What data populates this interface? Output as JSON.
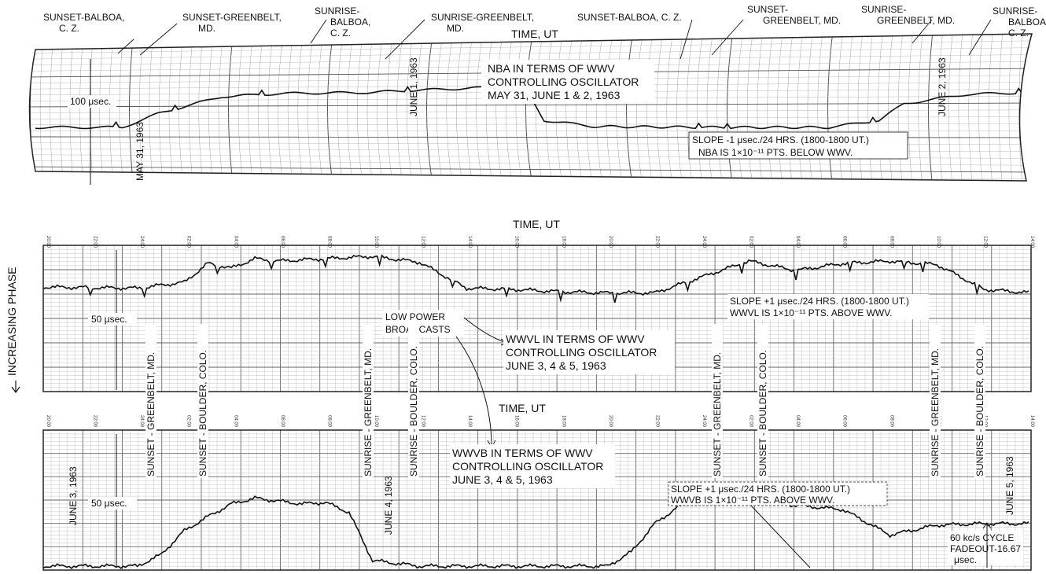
{
  "chart_data": [
    {
      "type": "line",
      "title": "NBA IN TERMS OF WWV CONTROLLING OSCILLATOR MAY 31, JUNE 1 & 2, 1963",
      "title_lines": [
        "NBA IN TERMS OF WWV",
        "CONTROLLING OSCILLATOR",
        "MAY 31, JUNE 1 & 2, 1963"
      ],
      "xlabel": "TIME, UT",
      "scale_label": "100 μsec.",
      "date_labels": [
        "MAY 31, 1963",
        "JUNE 1, 1963",
        "JUNE 2, 1963"
      ],
      "note_lines": [
        "SLOPE -1 μsec./24 HRS. (1800-1800 UT.)",
        "NBA IS 1×10⁻¹¹ PTS. BELOW WWV."
      ],
      "event_labels": [
        {
          "text": [
            "SUNSET-BALBOA,",
            "C. Z."
          ]
        },
        {
          "text": [
            "SUNSET-GREENBELT,",
            "MD."
          ]
        },
        {
          "text": [
            "SUNRISE-",
            "BALBOA,",
            "C. Z."
          ]
        },
        {
          "text": [
            "SUNRISE-GREENBELT,",
            "MD."
          ]
        },
        {
          "text": [
            "SUNSET-BALBOA, C. Z."
          ]
        },
        {
          "text": [
            "SUNSET-",
            "GREENBELT, MD."
          ]
        },
        {
          "text": [
            "SUNRISE-",
            "GREENBELT, MD."
          ]
        },
        {
          "text": [
            "SUNRISE-",
            "BALBOA,",
            "C. Z."
          ]
        }
      ],
      "series": [
        {
          "x": [
            0,
            14,
            20,
            30,
            40,
            54,
            60,
            68,
            74,
            78,
            80,
            82,
            90,
            110,
            128,
            136,
            140,
            150,
            160
          ],
          "y": [
            0,
            0,
            30,
            65,
            72,
            74,
            78,
            82,
            85,
            80,
            60,
            15,
            2,
            0,
            0,
            15,
            50,
            70,
            74
          ]
        }
      ]
    },
    {
      "type": "line",
      "title": "WWVL IN TERMS OF WWV CONTROLLING OSCILLATOR JUNE 3, 4 & 5, 1963",
      "title_lines": [
        "WWVL IN TERMS OF WWV",
        "CONTROLLING OSCILLATOR",
        "JUNE 3, 4 & 5, 1963"
      ],
      "xlabel": "TIME, UT",
      "x_ticks": [
        "20:00",
        "22:00",
        "24:00",
        "02:00",
        "04:00",
        "06:00",
        "08:00",
        "10:00",
        "12:00",
        "14:00",
        "16:00",
        "18:00",
        "20:00",
        "22:00",
        "24:00",
        "02:00",
        "04:00",
        "06:00",
        "08:00",
        "10:00",
        "12:00",
        "14:00"
      ],
      "ylabel": "INCREASING PHASE",
      "scale_label": "50 μsec.",
      "annotation_lines": [
        "LOW POWER",
        "BROADCASTS"
      ],
      "note_lines": [
        "SLOPE +1 μsec./24 HRS. (1800-1800 UT.)",
        "WWVL IS 1×10⁻¹¹ PTS. ABOVE WWV."
      ],
      "series": [
        {
          "x": [
            0,
            4,
            6,
            7,
            8,
            9,
            10,
            12,
            14,
            16,
            18,
            20,
            22,
            24,
            26,
            30,
            32,
            34,
            36,
            38,
            40,
            42
          ],
          "y": [
            10,
            9,
            14,
            30,
            26,
            34,
            32,
            34,
            36,
            31,
            9,
            8,
            6,
            5,
            5,
            32,
            24,
            30,
            32,
            29,
            8,
            5
          ]
        }
      ]
    },
    {
      "type": "line",
      "title": "WWVB IN TERMS OF WWV CONTROLLING OSCILLATOR JUNE 3, 4 & 5, 1963",
      "title_lines": [
        "WWVB IN TERMS OF WWV",
        "CONTROLLING OSCILLATOR",
        "JUNE 3, 4 & 5, 1963"
      ],
      "xlabel": "TIME, UT",
      "x_ticks": [
        "20:00",
        "22:00",
        "24:00",
        "02:00",
        "04:00",
        "06:00",
        "08:00",
        "10:00",
        "12:00",
        "14:00",
        "16:00",
        "18:00",
        "20:00",
        "22:00",
        "24:00",
        "02:00",
        "04:00",
        "06:00",
        "08:00",
        "10:00",
        "12:00",
        "14:00"
      ],
      "scale_label": "50 μsec.",
      "date_labels": [
        "JUNE 3, 1963",
        "JUNE 4, 1963",
        "JUNE 5, 1963"
      ],
      "event_labels": [
        "SUNSET - GREENBELT, MD.",
        "SUNSET - BOULDER, COLO.",
        "SUNRISE - GREENBELT, MD.",
        "SUNRISE - BOULDER, COLO.",
        "SUNSET - GREENBELT, MD.",
        "SUNSET - BOULDER, COLO.",
        "SUNRISE - GREENBELT, MD.",
        "SUNRISE - BOULDER, COLO."
      ],
      "note_lines": [
        "SLOPE +1 μsec./24 HRS. (1800-1800 UT.)",
        "WWVB IS 1×10⁻¹¹ PTS. ABOVE WWV."
      ],
      "aside_lines": [
        "60 kc/s CYCLE",
        "FADEOUT-16.67",
        "μsec."
      ],
      "series": [
        {
          "x": [
            0,
            4,
            5,
            6,
            7,
            8,
            9,
            10,
            11,
            12,
            13,
            14,
            16,
            18,
            20,
            22,
            24,
            25,
            26,
            27,
            28,
            30,
            32,
            34,
            36,
            38,
            40,
            42
          ],
          "y": [
            0,
            0,
            8,
            25,
            35,
            44,
            48,
            46,
            44,
            45,
            38,
            4,
            0,
            0,
            0,
            0,
            0,
            10,
            30,
            42,
            46,
            47,
            43,
            40,
            22,
            29,
            30,
            30
          ]
        }
      ]
    }
  ]
}
